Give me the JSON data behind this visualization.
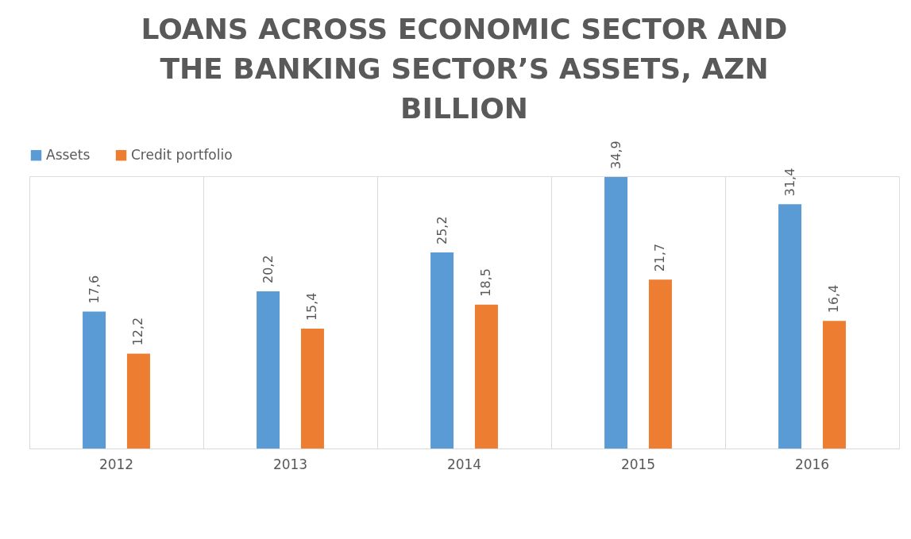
{
  "chart_data": {
    "type": "bar",
    "title": "LOANS ACROSS ECONOMIC SECTOR AND THE BANKING SECTOR’S ASSETS, AZN BILLION",
    "categories": [
      "2012",
      "2013",
      "2014",
      "2015",
      "2016"
    ],
    "series": [
      {
        "name": "Assets",
        "color": "#5b9bd5",
        "values": [
          17.6,
          20.2,
          25.2,
          34.9,
          31.4
        ],
        "value_labels": [
          "17,6",
          "20,2",
          "25,2",
          "34,9",
          "31,4"
        ]
      },
      {
        "name": "Credit portfolio",
        "color": "#ed7d31",
        "values": [
          12.2,
          15.4,
          18.5,
          21.7,
          16.4
        ],
        "value_labels": [
          "12,2",
          "15,4",
          "18,5",
          "21,7",
          "16,4"
        ]
      }
    ],
    "legend": "top",
    "grid": "x",
    "tick_labels": "x"
  }
}
